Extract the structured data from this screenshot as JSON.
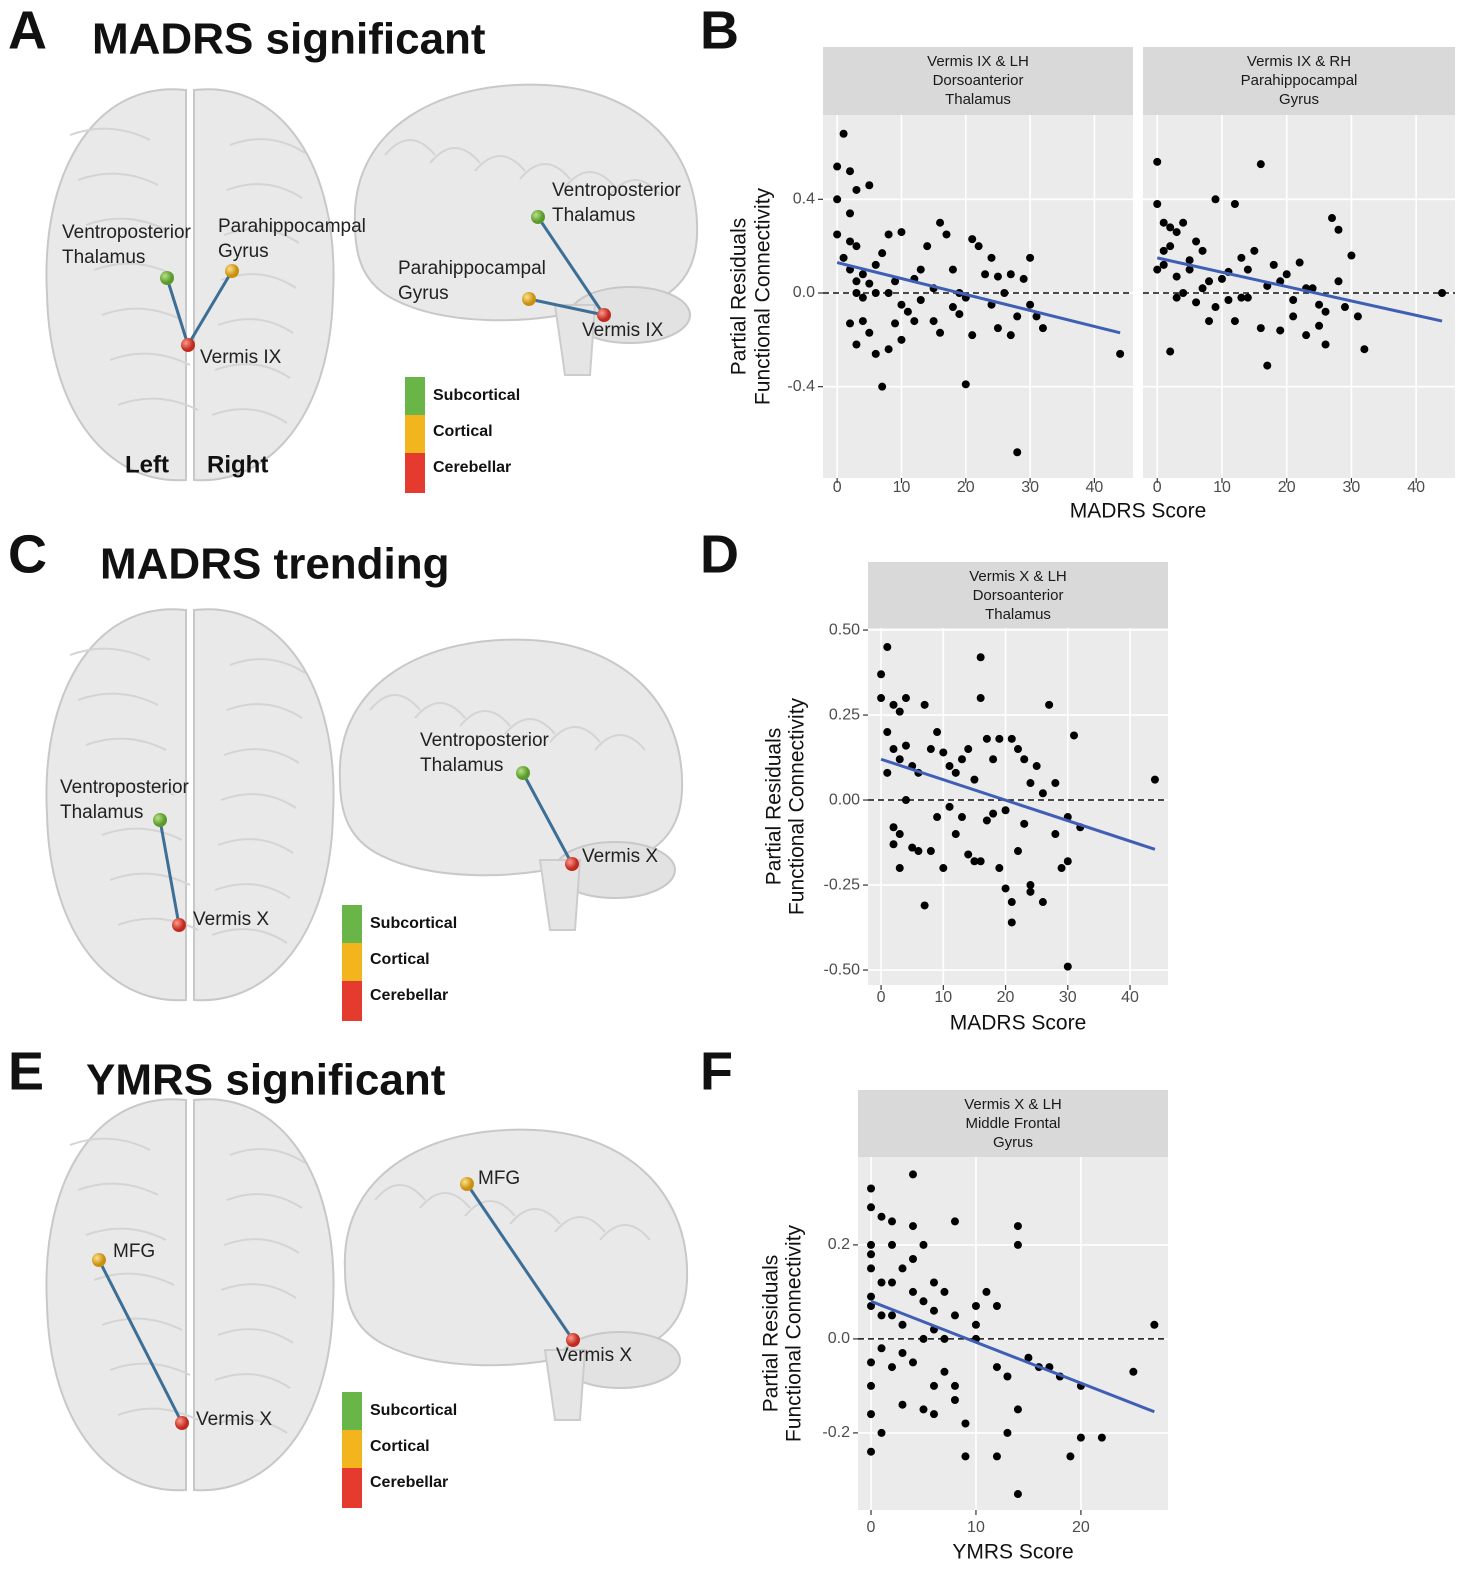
{
  "figure": {
    "panels": [
      {
        "letter": "A",
        "title": "MADRS significant",
        "axial_labels": [
          [
            "Ventroposterior",
            "Thalamus"
          ],
          [
            "Parahippocampal",
            "Gyrus"
          ],
          [
            "Vermis IX"
          ]
        ],
        "sagittal_labels": [
          [
            "Ventroposterior",
            "Thalamus"
          ],
          [
            "Parahippocampal",
            "Gyrus"
          ],
          [
            "Vermis IX"
          ]
        ],
        "sides": [
          "Left",
          "Right"
        ],
        "legend": [
          "Subcortical",
          "Cortical",
          "Cerebellar"
        ]
      },
      {
        "letter": "B"
      },
      {
        "letter": "C",
        "title": "MADRS trending",
        "axial_labels": [
          [
            "Ventroposterior",
            "Thalamus"
          ],
          [
            "Vermis X"
          ]
        ],
        "sagittal_labels": [
          [
            "Ventroposterior",
            "Thalamus"
          ],
          [
            "Vermis X"
          ]
        ],
        "legend": [
          "Subcortical",
          "Cortical",
          "Cerebellar"
        ]
      },
      {
        "letter": "D"
      },
      {
        "letter": "E",
        "title": "YMRS significant",
        "axial_labels": [
          [
            "MFG"
          ],
          [
            "Vermis X"
          ]
        ],
        "sagittal_labels": [
          [
            "MFG"
          ],
          [
            "Vermis X"
          ]
        ],
        "legend": [
          "Subcortical",
          "Cortical",
          "Cerebellar"
        ]
      },
      {
        "letter": "F"
      }
    ]
  },
  "chart_data": [
    {
      "type": "scatter",
      "x_label": "MADRS Score",
      "y_label": [
        "Partial Residuals",
        "Functional Connectivity"
      ],
      "xlim": [
        -2.2,
        46
      ],
      "ylim": [
        -0.79,
        0.76
      ],
      "xticks": [
        0,
        10,
        20,
        30,
        40
      ],
      "yticks": [
        -0.4,
        {
          "value": 0,
          "label": "0.0"
        },
        0.4
      ],
      "color": "#000000",
      "fit_color": "#3f5fb5",
      "facets": [
        {
          "title": [
            "Vermis IX & LH",
            "Dorsoanterior",
            "Thalamus"
          ],
          "x": [
            1,
            0,
            2,
            5,
            3,
            0,
            2,
            0,
            2,
            3,
            1,
            2,
            4,
            3,
            6,
            7,
            8,
            10,
            5,
            4,
            6,
            2,
            3,
            4,
            6,
            7,
            8,
            9,
            10,
            11,
            12,
            13,
            14,
            15,
            16,
            17,
            15,
            16,
            18,
            19,
            20,
            20,
            21,
            21,
            22,
            23,
            24,
            25,
            26,
            27,
            28,
            28,
            29,
            30,
            31,
            32,
            30,
            27,
            24,
            19,
            12,
            8,
            9,
            13,
            44,
            3,
            5,
            10,
            18,
            25
          ],
          "y": [
            0.68,
            0.54,
            0.52,
            0.46,
            0.44,
            0.4,
            0.34,
            0.25,
            0.22,
            0.2,
            0.15,
            0.1,
            0.08,
            0.05,
            0.12,
            0.17,
            0.25,
            0.26,
            0.04,
            -0.02,
            0.0,
            -0.13,
            -0.22,
            -0.12,
            -0.26,
            -0.4,
            -0.24,
            -0.13,
            -0.05,
            -0.08,
            0.06,
            0.1,
            0.2,
            0.02,
            0.3,
            0.25,
            -0.12,
            -0.17,
            -0.06,
            0.0,
            -0.39,
            -0.02,
            -0.18,
            0.23,
            0.2,
            0.08,
            -0.05,
            -0.15,
            0.0,
            -0.18,
            -0.68,
            -0.1,
            0.06,
            0.15,
            -0.1,
            -0.15,
            -0.05,
            0.08,
            0.15,
            -0.09,
            -0.12,
            0.0,
            0.05,
            -0.03,
            -0.26,
            0.0,
            -0.17,
            -0.2,
            0.1,
            0.07
          ],
          "fit": {
            "x": [
              0,
              44
            ],
            "y": [
              0.13,
              -0.17
            ]
          }
        },
        {
          "title": [
            "Vermis IX & RH",
            "Parahippocampal",
            "Gyrus"
          ],
          "x": [
            0,
            0,
            1,
            2,
            3,
            4,
            2,
            1,
            0,
            3,
            5,
            6,
            7,
            8,
            2,
            4,
            6,
            8,
            9,
            10,
            11,
            12,
            13,
            14,
            15,
            16,
            17,
            18,
            19,
            20,
            21,
            22,
            23,
            24,
            25,
            26,
            27,
            28,
            28,
            29,
            30,
            31,
            32,
            44,
            5,
            7,
            9,
            12,
            14,
            17,
            19,
            21,
            23,
            25,
            26,
            16,
            13,
            11,
            3,
            1
          ],
          "y": [
            0.56,
            0.38,
            0.3,
            0.28,
            0.26,
            0.3,
            0.2,
            0.12,
            0.1,
            0.07,
            0.14,
            0.22,
            0.18,
            0.05,
            -0.25,
            0.0,
            -0.04,
            -0.12,
            0.4,
            0.06,
            -0.03,
            0.38,
            0.15,
            -0.02,
            0.18,
            0.55,
            -0.31,
            0.12,
            -0.16,
            0.08,
            -0.1,
            0.13,
            -0.18,
            0.02,
            -0.14,
            -0.22,
            0.32,
            0.27,
            0.05,
            -0.06,
            0.16,
            -0.1,
            -0.24,
            0.0,
            0.1,
            0.02,
            -0.06,
            -0.12,
            0.1,
            0.03,
            0.05,
            -0.03,
            0.02,
            -0.05,
            -0.08,
            -0.15,
            -0.02,
            0.09,
            -0.02,
            0.18
          ],
          "fit": {
            "x": [
              0,
              44
            ],
            "y": [
              0.15,
              -0.12
            ]
          }
        }
      ]
    },
    {
      "type": "scatter",
      "x_label": "MADRS Score",
      "y_label": [
        "Partial Residuals",
        "Functional Connectivity"
      ],
      "xlim": [
        -2.1,
        46.1
      ],
      "ylim": [
        -0.544,
        0.506
      ],
      "xticks": [
        0,
        10,
        20,
        30,
        40
      ],
      "yticks": [
        {
          "value": -0.5,
          "label": "-0.50"
        },
        -0.25,
        {
          "value": 0,
          "label": "0.00"
        },
        0.25,
        {
          "value": 0.5,
          "label": "0.50"
        }
      ],
      "color": "#000000",
      "fit_color": "#3f5fb5",
      "facets": [
        {
          "title": [
            "Vermis X & LH",
            "Dorsoanterior",
            "Thalamus"
          ],
          "x": [
            0,
            1,
            0,
            2,
            4,
            3,
            1,
            2,
            3,
            1,
            4,
            5,
            6,
            7,
            8,
            9,
            10,
            11,
            12,
            13,
            14,
            15,
            16,
            16,
            17,
            18,
            19,
            20,
            21,
            22,
            23,
            24,
            25,
            26,
            27,
            28,
            30,
            31,
            32,
            2,
            3,
            2,
            3,
            5,
            6,
            7,
            8,
            9,
            10,
            11,
            12,
            13,
            14,
            15,
            16,
            18,
            19,
            20,
            21,
            21,
            22,
            24,
            24,
            26,
            28,
            29,
            30,
            30,
            44,
            4,
            17,
            23
          ],
          "y": [
            0.37,
            0.45,
            0.3,
            0.28,
            0.3,
            0.26,
            0.2,
            0.15,
            0.12,
            0.08,
            0.16,
            0.1,
            0.08,
            0.28,
            0.15,
            0.2,
            0.14,
            0.1,
            0.08,
            0.12,
            0.15,
            0.06,
            0.42,
            0.3,
            0.18,
            0.12,
            0.18,
            -0.03,
            0.18,
            0.15,
            0.12,
            0.05,
            0.1,
            0.02,
            0.28,
            0.05,
            -0.05,
            0.19,
            -0.08,
            -0.08,
            -0.1,
            -0.13,
            -0.2,
            -0.14,
            -0.15,
            -0.31,
            -0.15,
            -0.05,
            -0.2,
            -0.02,
            -0.1,
            -0.05,
            -0.16,
            -0.18,
            -0.18,
            -0.04,
            -0.2,
            -0.26,
            -0.3,
            -0.36,
            -0.15,
            -0.25,
            -0.27,
            -0.3,
            -0.1,
            -0.2,
            -0.18,
            -0.49,
            0.06,
            0.0,
            -0.06,
            -0.07
          ],
          "fit": {
            "x": [
              0,
              44
            ],
            "y": [
              0.12,
              -0.145
            ]
          }
        }
      ]
    },
    {
      "type": "scatter",
      "x_label": "YMRS Score",
      "y_label": [
        "Partial Residuals",
        "Functional Connectivity"
      ],
      "xlim": [
        -1.24,
        28.3
      ],
      "ylim": [
        -0.364,
        0.387
      ],
      "xticks": [
        0,
        10,
        20
      ],
      "yticks": [
        -0.2,
        {
          "value": 0,
          "label": "0.0"
        },
        0.2
      ],
      "color": "#000000",
      "fit_color": "#3f5fb5",
      "facets": [
        {
          "title": [
            "Vermis X & LH",
            "Middle Frontal",
            "Gyrus"
          ],
          "x": [
            0,
            0,
            0,
            0,
            0,
            0,
            0,
            0,
            0,
            0,
            0,
            1,
            1,
            1,
            1,
            2,
            2,
            2,
            2,
            3,
            3,
            3,
            4,
            4,
            4,
            4,
            5,
            5,
            5,
            6,
            6,
            6,
            7,
            7,
            7,
            8,
            8,
            8,
            9,
            9,
            10,
            10,
            11,
            12,
            12,
            13,
            13,
            14,
            14,
            14,
            14,
            15,
            16,
            17,
            18,
            19,
            20,
            20,
            22,
            25,
            27,
            1,
            3,
            5,
            6,
            8,
            10,
            2,
            4,
            6,
            12
          ],
          "y": [
            0.32,
            0.28,
            0.2,
            0.18,
            0.15,
            0.09,
            0.07,
            -0.05,
            -0.1,
            -0.16,
            -0.24,
            0.26,
            0.12,
            -0.02,
            -0.2,
            0.25,
            0.2,
            0.05,
            -0.06,
            0.15,
            0.03,
            -0.14,
            0.35,
            0.24,
            0.1,
            -0.05,
            0.2,
            0.08,
            -0.15,
            0.12,
            0.02,
            -0.16,
            0.1,
            0.0,
            -0.07,
            0.25,
            0.05,
            -0.1,
            -0.18,
            -0.25,
            0.07,
            0.03,
            0.1,
            0.07,
            -0.06,
            -0.2,
            -0.08,
            0.24,
            0.2,
            -0.15,
            -0.33,
            -0.04,
            -0.06,
            -0.06,
            -0.08,
            -0.25,
            -0.1,
            -0.21,
            -0.21,
            -0.07,
            0.03,
            0.05,
            -0.03,
            0.0,
            -0.1,
            -0.13,
            0.0,
            0.12,
            0.17,
            0.06,
            -0.25
          ],
          "fit": {
            "x": [
              0,
              27
            ],
            "y": [
              0.08,
              -0.155
            ]
          }
        }
      ]
    }
  ]
}
